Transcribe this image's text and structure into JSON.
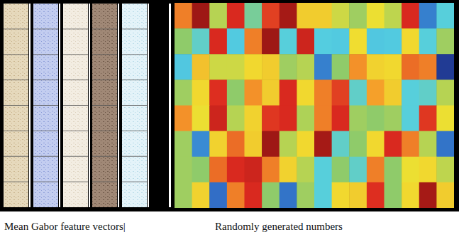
{
  "chart_data": {
    "type": "heatmap",
    "tick_labels": false,
    "annotations": [
      "Mean Gabor feature vectors|",
      "Randomly generated numbers"
    ],
    "color_range": [
      0,
      1
    ],
    "cells": [
      [
        0.78,
        0.97,
        0.55,
        0.88,
        0.45,
        0.85,
        0.96,
        0.66,
        0.66,
        0.58,
        0.52,
        0.62,
        0.56,
        0.88,
        0.18,
        0.38
      ],
      [
        0.5,
        0.4,
        0.88,
        0.36,
        0.78,
        0.97,
        0.38,
        0.9,
        0.37,
        0.36,
        0.63,
        0.35,
        0.36,
        0.64,
        0.38,
        0.52
      ],
      [
        0.35,
        0.68,
        0.58,
        0.58,
        0.64,
        0.66,
        0.52,
        0.55,
        0.18,
        0.5,
        0.76,
        0.65,
        0.64,
        0.8,
        0.78,
        0.04
      ],
      [
        0.52,
        0.64,
        0.87,
        0.5,
        0.76,
        0.66,
        0.88,
        0.64,
        0.78,
        0.85,
        0.4,
        0.74,
        0.66,
        0.38,
        0.4,
        0.55
      ],
      [
        0.76,
        0.62,
        0.9,
        0.55,
        0.65,
        0.86,
        0.88,
        0.54,
        0.78,
        0.88,
        0.52,
        0.5,
        0.52,
        0.38,
        0.86,
        0.62
      ],
      [
        0.52,
        0.2,
        0.65,
        0.8,
        0.66,
        0.97,
        0.55,
        0.64,
        0.96,
        0.4,
        0.5,
        0.64,
        0.88,
        0.78,
        0.55,
        0.16
      ],
      [
        0.52,
        0.5,
        0.8,
        0.88,
        0.9,
        0.78,
        0.65,
        0.55,
        0.38,
        0.5,
        0.4,
        0.78,
        0.5,
        0.62,
        0.64,
        0.56
      ],
      [
        0.52,
        0.65,
        0.15,
        0.78,
        0.88,
        0.5,
        0.16,
        0.52,
        0.38,
        0.64,
        0.66,
        0.87,
        0.5,
        0.64,
        0.96,
        0.66
      ]
    ]
  }
}
